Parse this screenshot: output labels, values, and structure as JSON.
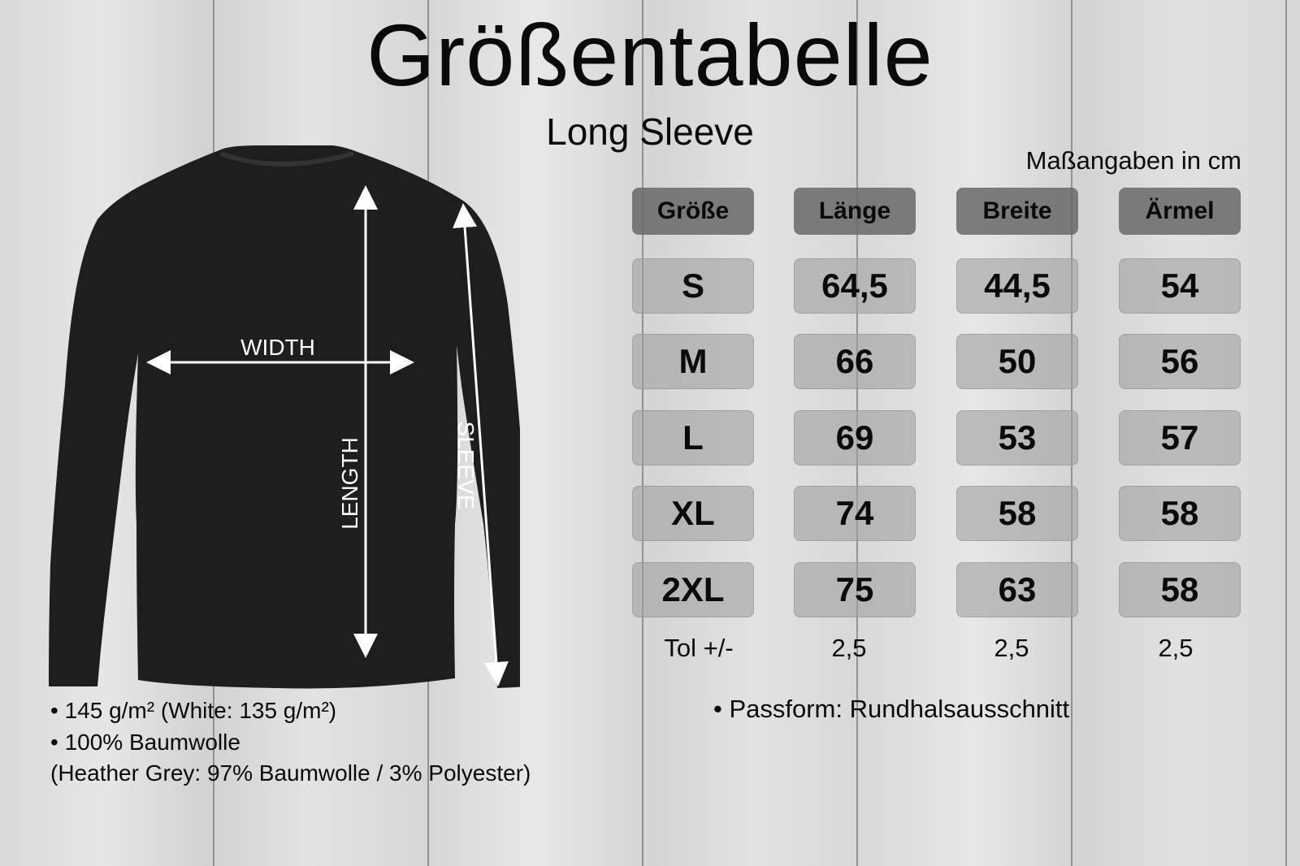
{
  "title": "Größentabelle",
  "subtitle": "Long Sleeve",
  "units_note": "Maßangaben in cm",
  "diagram_labels": {
    "width": "WIDTH",
    "length": "LENGTH",
    "sleeve": "SLEEVE"
  },
  "table": {
    "headers": [
      "Größe",
      "Länge",
      "Breite",
      "Ärmel"
    ],
    "rows": [
      [
        "S",
        "64,5",
        "44,5",
        "54"
      ],
      [
        "M",
        "66",
        "50",
        "56"
      ],
      [
        "L",
        "69",
        "53",
        "57"
      ],
      [
        "XL",
        "74",
        "58",
        "58"
      ],
      [
        "2XL",
        "75",
        "63",
        "58"
      ]
    ],
    "tolerance": [
      "Tol +/-",
      "2,5",
      "2,5",
      "2,5"
    ]
  },
  "notes": {
    "weight": "• 145 g/m² (White: 135 g/m²)",
    "material": "• 100% Baumwolle",
    "material_detail": "(Heather Grey: 97% Baumwolle / 3% Polyester)",
    "fit": "•  Passform: Rundhalsausschnitt"
  },
  "colors": {
    "shirt": "#1e1e1e",
    "header_cell": "#6e6e6e",
    "value_cell": "#b0b0b0"
  }
}
